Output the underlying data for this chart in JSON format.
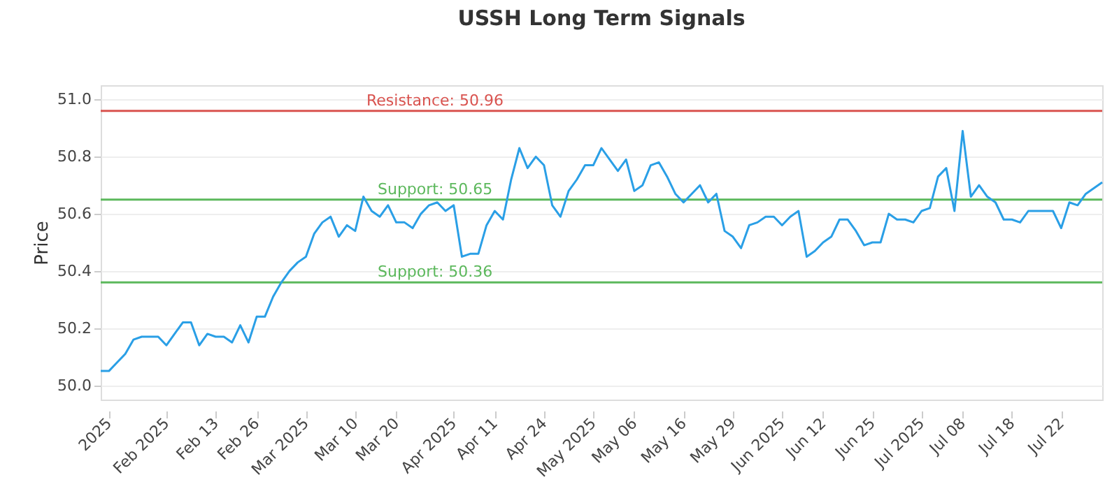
{
  "chart_data": {
    "type": "line",
    "title": "USSH Long Term Signals",
    "ylabel": "Price",
    "categories": [
      null,
      "2025",
      null,
      null,
      null,
      null,
      null,
      null,
      "Feb 2025",
      null,
      null,
      null,
      null,
      null,
      "Feb 13",
      null,
      null,
      null,
      null,
      "Feb 26",
      null,
      null,
      null,
      null,
      null,
      "Mar 2025",
      null,
      null,
      null,
      null,
      null,
      "Mar 10",
      null,
      null,
      null,
      null,
      "Mar 20",
      null,
      null,
      null,
      null,
      null,
      null,
      "Apr 2025",
      null,
      null,
      null,
      null,
      "Apr 11",
      null,
      null,
      null,
      null,
      null,
      "Apr 24",
      null,
      null,
      null,
      null,
      null,
      "May 2025",
      null,
      null,
      null,
      null,
      "May 06",
      null,
      null,
      null,
      null,
      null,
      "May 16",
      null,
      null,
      null,
      null,
      null,
      "May 29",
      null,
      null,
      null,
      null,
      null,
      "Jun 2025",
      null,
      null,
      null,
      null,
      "Jun 12",
      null,
      null,
      null,
      null,
      null,
      "Jun 25",
      null,
      null,
      null,
      null,
      null,
      "Jul 2025",
      null,
      null,
      null,
      null,
      "Jul 08",
      null,
      null,
      null,
      null,
      null,
      "Jul 18",
      null,
      null,
      null,
      null,
      null,
      "Jul 22",
      null,
      null,
      null,
      null,
      null
    ],
    "series": [
      {
        "color": "#2a9fe6",
        "values": [
          50.05,
          50.05,
          50.08,
          50.11,
          50.16,
          50.17,
          50.17,
          50.17,
          50.14,
          50.18,
          50.22,
          50.22,
          50.14,
          50.18,
          50.17,
          50.17,
          50.15,
          50.21,
          50.15,
          50.24,
          50.24,
          50.31,
          50.36,
          50.4,
          50.43,
          50.45,
          50.53,
          50.57,
          50.59,
          50.52,
          50.56,
          50.54,
          50.66,
          50.61,
          50.59,
          50.63,
          50.57,
          50.57,
          50.55,
          50.6,
          50.63,
          50.64,
          50.61,
          50.63,
          50.45,
          50.46,
          50.46,
          50.56,
          50.61,
          50.58,
          50.72,
          50.83,
          50.76,
          50.8,
          50.77,
          50.63,
          50.59,
          50.68,
          50.72,
          50.77,
          50.77,
          50.83,
          50.79,
          50.75,
          50.79,
          50.68,
          50.7,
          50.77,
          50.78,
          50.73,
          50.67,
          50.64,
          50.67,
          50.7,
          50.64,
          50.67,
          50.54,
          50.52,
          50.48,
          50.56,
          50.57,
          50.59,
          50.59,
          50.56,
          50.59,
          50.61,
          50.45,
          50.47,
          50.5,
          50.52,
          50.58,
          50.58,
          50.54,
          50.49,
          50.5,
          50.5,
          50.6,
          50.58,
          50.58,
          50.57,
          50.61,
          50.62,
          50.73,
          50.76,
          50.61,
          50.89,
          50.66,
          50.7,
          50.66,
          50.64,
          50.58,
          50.58,
          50.57,
          50.61,
          50.61,
          50.61,
          50.61,
          50.55,
          50.64,
          50.63,
          50.67,
          50.69,
          50.71
        ]
      }
    ],
    "ylim": [
      49.95,
      51.05
    ],
    "yticks": [
      {
        "value": 50,
        "label": "50.0"
      },
      50.2,
      50.4,
      50.6,
      50.8,
      {
        "value": 51,
        "label": "51.0"
      }
    ],
    "ref_lines": [
      {
        "axis": "y",
        "value": 50.96,
        "label": "Resistance: 50.96",
        "color": "#d9534f"
      },
      {
        "axis": "y",
        "value": 50.65,
        "label": "Support: 50.65",
        "color": "#5cb85c"
      },
      {
        "axis": "y",
        "value": 50.36,
        "label": "Support: 50.36",
        "color": "#5cb85c"
      }
    ],
    "grid": "y",
    "marker": "none",
    "line_style": "solid"
  }
}
